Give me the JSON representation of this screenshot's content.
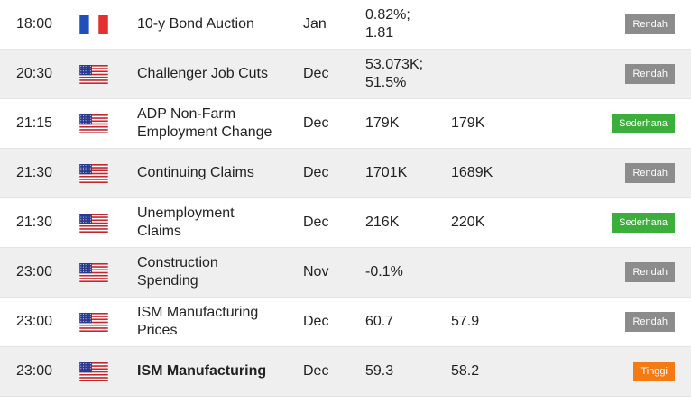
{
  "rows": [
    {
      "time": "18:00",
      "country": "fr",
      "event": "10-y Bond Auction",
      "bold": false,
      "period": "Jan",
      "actual": "0.82%;\n1.81",
      "forecast": "",
      "impact": "Rendah",
      "impact_level": "low"
    },
    {
      "time": "20:30",
      "country": "us",
      "event": "Challenger Job Cuts",
      "bold": false,
      "period": "Dec",
      "actual": "53.073K;\n51.5%",
      "forecast": "",
      "impact": "Rendah",
      "impact_level": "low"
    },
    {
      "time": "21:15",
      "country": "us",
      "event": "ADP Non-Farm\nEmployment Change",
      "bold": false,
      "period": "Dec",
      "actual": "179K",
      "forecast": "179K",
      "impact": "Sederhana",
      "impact_level": "mid"
    },
    {
      "time": "21:30",
      "country": "us",
      "event": "Continuing Claims",
      "bold": false,
      "period": "Dec",
      "actual": "1701K",
      "forecast": "1689K",
      "impact": "Rendah",
      "impact_level": "low"
    },
    {
      "time": "21:30",
      "country": "us",
      "event": "Unemployment\nClaims",
      "bold": false,
      "period": "Dec",
      "actual": "216K",
      "forecast": "220K",
      "impact": "Sederhana",
      "impact_level": "mid"
    },
    {
      "time": "23:00",
      "country": "us",
      "event": "Construction\nSpending",
      "bold": false,
      "period": "Nov",
      "actual": "-0.1%",
      "forecast": "",
      "impact": "Rendah",
      "impact_level": "low"
    },
    {
      "time": "23:00",
      "country": "us",
      "event": "ISM Manufacturing\nPrices",
      "bold": false,
      "period": "Dec",
      "actual": "60.7",
      "forecast": "57.9",
      "impact": "Rendah",
      "impact_level": "low"
    },
    {
      "time": "23:00",
      "country": "us",
      "event": "ISM Manufacturing",
      "bold": true,
      "period": "Dec",
      "actual": "59.3",
      "forecast": "58.2",
      "impact": "Tinggi",
      "impact_level": "high"
    }
  ],
  "colors": {
    "low": "#8c8c8c",
    "mid": "#3cae3c",
    "high": "#f47a14"
  }
}
